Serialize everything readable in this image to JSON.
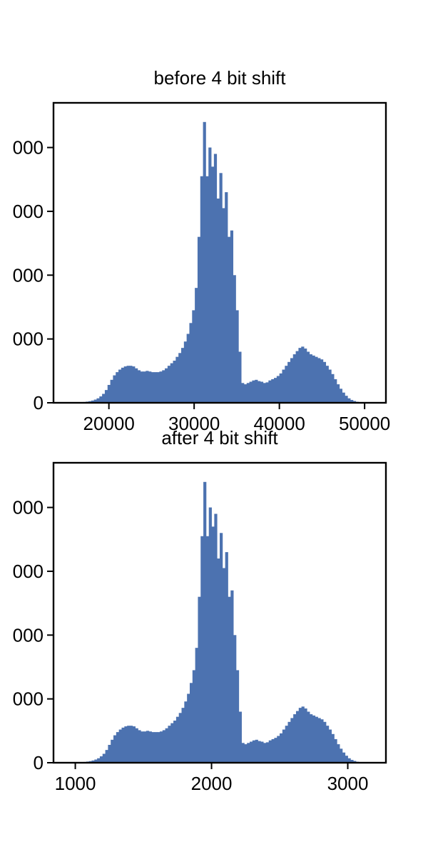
{
  "chart_data": [
    {
      "type": "bar",
      "subtype": "histogram",
      "title": "before 4 bit shift",
      "xlabel": "",
      "ylabel": "",
      "xlim": [
        13500,
        52500
      ],
      "ylim": [
        0,
        4700
      ],
      "xticks": [
        20000,
        30000,
        40000,
        50000
      ],
      "xtick_labels": [
        "20000",
        "30000",
        "40000",
        "50000"
      ],
      "yticks": [
        0,
        1000,
        2000,
        3000,
        4000
      ],
      "ytick_labels": [
        "0",
        "000",
        "000",
        "000",
        "000"
      ],
      "bar_color": "#4c72b0",
      "grid": false,
      "bin_start": 16000,
      "bin_width": 320,
      "counts": [
        2,
        5,
        8,
        12,
        18,
        25,
        35,
        50,
        70,
        100,
        140,
        200,
        280,
        360,
        430,
        480,
        520,
        550,
        570,
        580,
        580,
        570,
        540,
        510,
        490,
        490,
        500,
        490,
        480,
        480,
        480,
        490,
        510,
        540,
        580,
        620,
        660,
        720,
        780,
        860,
        960,
        1080,
        1250,
        1450,
        1800,
        2600,
        3550,
        4400,
        3550,
        4000,
        3700,
        3900,
        3200,
        3600,
        3050,
        3300,
        2600,
        2700,
        2000,
        1450,
        800,
        310,
        290,
        310,
        330,
        350,
        360,
        340,
        330,
        310,
        320,
        350,
        370,
        390,
        420,
        460,
        520,
        580,
        640,
        700,
        760,
        810,
        860,
        880,
        850,
        800,
        760,
        740,
        720,
        700,
        680,
        640,
        580,
        520,
        450,
        370,
        290,
        220,
        160,
        110,
        70,
        45,
        28,
        15,
        8,
        4,
        2,
        1
      ]
    },
    {
      "type": "bar",
      "subtype": "histogram",
      "title": "after 4 bit shift",
      "xlabel": "",
      "ylabel": "",
      "xlim": [
        840,
        3280
      ],
      "ylim": [
        0,
        4700
      ],
      "xticks": [
        1000,
        2000,
        3000
      ],
      "xtick_labels": [
        "1000",
        "2000",
        "3000"
      ],
      "yticks": [
        0,
        1000,
        2000,
        3000,
        4000
      ],
      "ytick_labels": [
        "0",
        "000",
        "000",
        "000",
        "000"
      ],
      "bar_color": "#4c72b0",
      "grid": false,
      "bin_start": 1000,
      "bin_width": 20,
      "counts": [
        2,
        5,
        8,
        12,
        18,
        25,
        35,
        50,
        70,
        100,
        140,
        200,
        280,
        360,
        430,
        480,
        520,
        550,
        570,
        580,
        580,
        570,
        540,
        510,
        490,
        490,
        500,
        490,
        480,
        480,
        480,
        490,
        510,
        540,
        580,
        620,
        660,
        720,
        780,
        860,
        960,
        1080,
        1250,
        1450,
        1800,
        2600,
        3550,
        4400,
        3550,
        4000,
        3700,
        3900,
        3200,
        3600,
        3050,
        3300,
        2600,
        2700,
        2000,
        1450,
        800,
        310,
        290,
        310,
        330,
        350,
        360,
        340,
        330,
        310,
        320,
        350,
        370,
        390,
        420,
        460,
        520,
        580,
        640,
        700,
        760,
        810,
        860,
        880,
        850,
        800,
        760,
        740,
        720,
        700,
        680,
        640,
        580,
        520,
        450,
        370,
        290,
        220,
        160,
        110,
        70,
        45,
        28,
        15,
        8,
        4,
        2,
        1
      ]
    }
  ]
}
